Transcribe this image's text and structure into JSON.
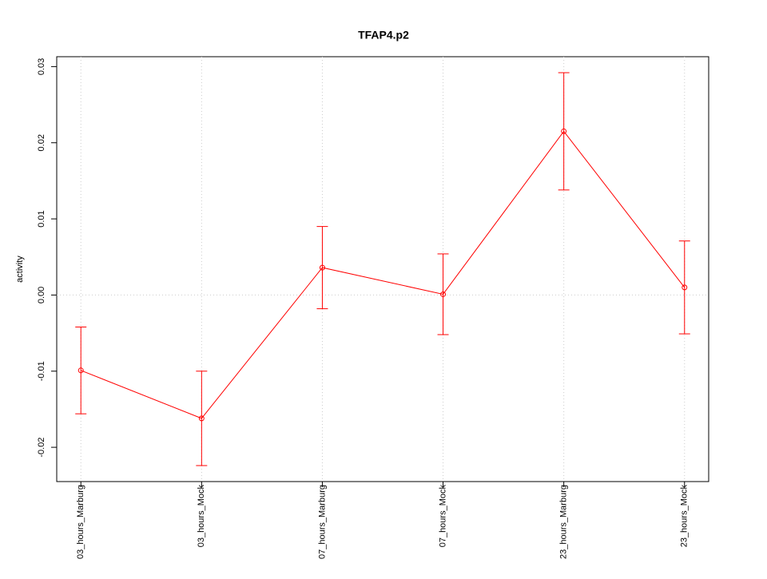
{
  "chart_data": {
    "type": "line",
    "title": "TFAP4.p2",
    "y_label": "activity",
    "categories": [
      "03_hours_Marburg",
      "03_hours_Mock",
      "07_hours_Marburg",
      "07_hours_Mock",
      "23_hours_Marburg",
      "23_hours_Mock"
    ],
    "values": [
      -0.0099,
      -0.0162,
      0.0036,
      0.0001,
      0.0215,
      0.001
    ],
    "errors": [
      0.0057,
      0.0062,
      0.0054,
      0.0053,
      0.0077,
      0.0061
    ],
    "color": "#ff0000",
    "ylim": [
      -0.0245,
      0.0313
    ],
    "yticks": [
      -0.02,
      -0.01,
      {
        "value": 0,
        "label": "0.00"
      },
      0.01,
      0.02,
      0.03
    ],
    "hline": 0,
    "grid": true
  }
}
